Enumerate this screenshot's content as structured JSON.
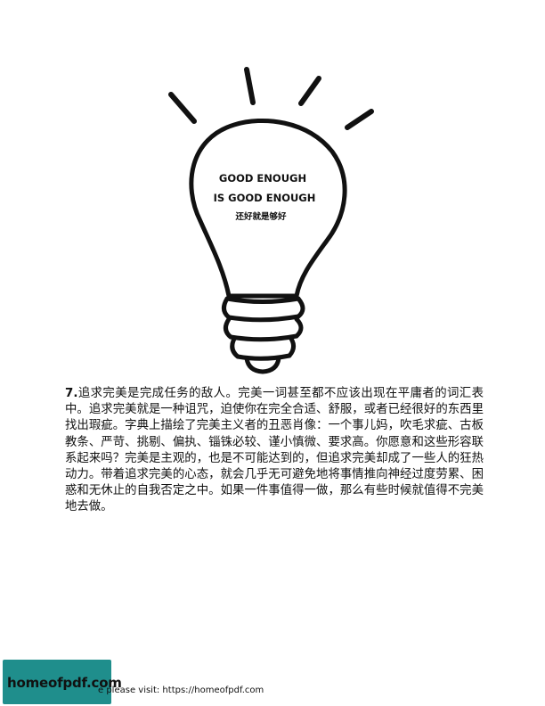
{
  "illustration": {
    "line1": "GOOD ENOUGH",
    "line2": "IS GOOD ENOUGH",
    "line3": "还好就是够好"
  },
  "article": {
    "number": "7.",
    "text": "追求完美是完成任务的敌人。完美一词甚至都不应该出现在平庸者的词汇表中。追求完美就是一种诅咒，迫使你在完全合适、舒服，或者已经很好的东西里找出瑕疵。字典上描绘了完美主义者的丑恶肖像：一个事儿妈，吹毛求疵、古板教条、严苛、挑剔、偏执、锱铢必较、谨小慎微、要求高。你愿意和这些形容联系起来吗？完美是主观的，也是不可能达到的，但追求完美却成了一些人的狂热动力。带着追求完美的心态，就会几乎无可避免地将事情推向神经过度劳累、困惑和无休止的自我否定之中。如果一件事值得一做，那么有些时候就值得不完美地去做。"
  },
  "footer": {
    "logo": "homeofpdf.com",
    "note": "e please visit: https://homeofpdf.com"
  },
  "colors": {
    "badge": "#1f8e8c"
  }
}
